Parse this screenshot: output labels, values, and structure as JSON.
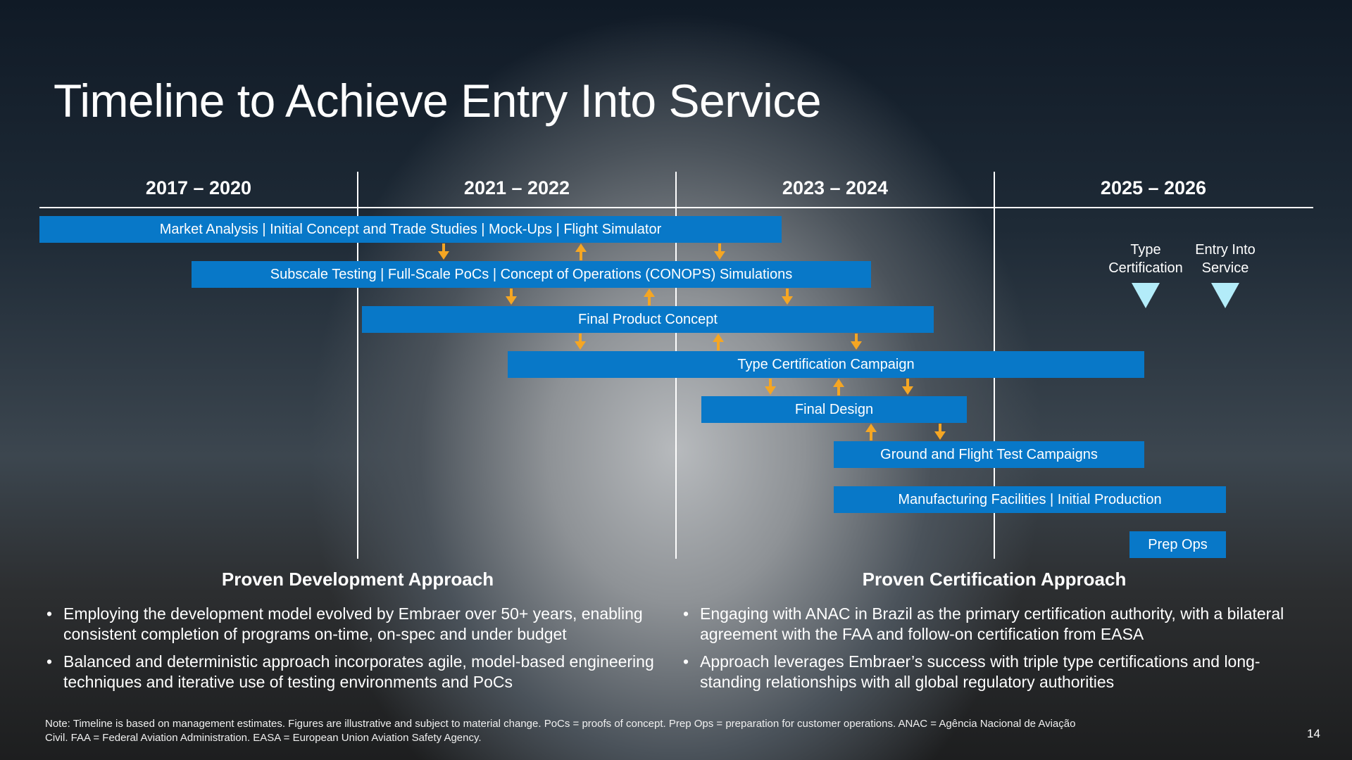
{
  "title": "Timeline to Achieve Entry Into Service",
  "periods": [
    "2017 – 2020",
    "2021 – 2022",
    "2023 – 2024",
    "2025 – 2026"
  ],
  "bars": [
    "Market Analysis | Initial Concept and Trade Studies | Mock-Ups | Flight Simulator",
    "Subscale Testing | Full-Scale PoCs | Concept of Operations (CONOPS) Simulations",
    "Final Product Concept",
    "Type Certification Campaign",
    "Final Design",
    "Ground and Flight Test Campaigns",
    "Manufacturing Facilities | Initial Production",
    "Prep Ops"
  ],
  "milestones": [
    {
      "line1": "Type",
      "line2": "Certification"
    },
    {
      "line1": "Entry Into",
      "line2": "Service"
    }
  ],
  "approaches": [
    {
      "heading": "Proven Development Approach",
      "bullets": [
        "Employing the development model evolved by Embraer over 50+ years, enabling consistent completion of programs on-time, on-spec and under budget",
        "Balanced and deterministic approach incorporates agile, model-based engineering techniques and iterative use of testing environments and PoCs"
      ]
    },
    {
      "heading": "Proven Certification Approach",
      "bullets": [
        "Engaging with ANAC in Brazil as the primary certification authority, with a bilateral agreement with the FAA and follow-on certification from EASA",
        "Approach leverages Embraer’s success with triple type certifications and long-standing relationships with all global regulatory authorities"
      ]
    }
  ],
  "note": "Note: Timeline is based on management estimates. Figures are illustrative and subject to material change. PoCs = proofs of concept.  Prep Ops = preparation for customer operations.  ANAC = Agência Nacional de Aviação Civil.  FAA = Federal Aviation Administration. EASA = European Union Aviation Safety Agency.",
  "page_number": "14",
  "colors": {
    "bar": "#0878c8",
    "arrow": "#f5a623",
    "milestone": "#b3ecf9"
  }
}
